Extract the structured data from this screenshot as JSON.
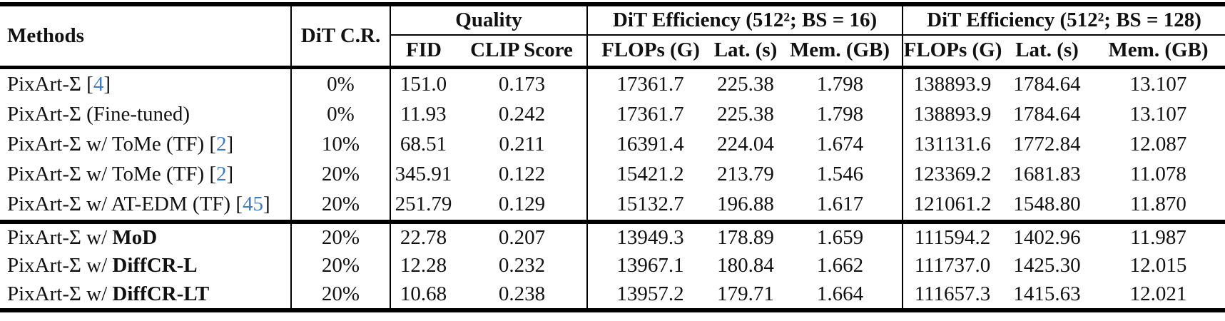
{
  "page": {
    "background": "#ffffff",
    "text_color": "#111111",
    "citation_color": "#3d7cc0"
  },
  "table": {
    "header": {
      "methods_label": "Methods",
      "dit_cr_label": "DiT C.R.",
      "quality_group_label": "Quality",
      "eff16_group_label": "DiT Efficiency (512²; BS = 16)",
      "eff128_group_label": "DiT Efficiency (512²; BS = 128)",
      "quality_cols": [
        "FID",
        "CLIP Score"
      ],
      "eff_cols": [
        "FLOPs (G)",
        "Lat. (s)",
        "Mem. (GB)"
      ]
    },
    "column_keys": [
      "dit-cr",
      "fid",
      "clip-score",
      "flops-bs16",
      "latency-bs16",
      "memory-bs16",
      "flops-bs128",
      "latency-bs128",
      "memory-bs128"
    ],
    "row_groups": [
      {
        "rows": [
          {
            "method": {
              "text": "PixArt-Σ",
              "bold": "",
              "cite": "4"
            },
            "values": [
              "0%",
              "151.0",
              "0.173",
              "17361.7",
              "225.38",
              "1.798",
              "138893.9",
              "1784.64",
              "13.107"
            ]
          },
          {
            "method": {
              "text": "PixArt-Σ (Fine-tuned)",
              "bold": "",
              "cite": ""
            },
            "values": [
              "0%",
              "11.93",
              "0.242",
              "17361.7",
              "225.38",
              "1.798",
              "138893.9",
              "1784.64",
              "13.107"
            ]
          },
          {
            "method": {
              "text": "PixArt-Σ w/ ToMe (TF)",
              "bold": "",
              "cite": "2"
            },
            "values": [
              "10%",
              "68.51",
              "0.211",
              "16391.4",
              "224.04",
              "1.674",
              "131131.6",
              "1772.84",
              "12.087"
            ]
          },
          {
            "method": {
              "text": "PixArt-Σ w/ ToMe (TF)",
              "bold": "",
              "cite": "2"
            },
            "values": [
              "20%",
              "345.91",
              "0.122",
              "15421.2",
              "213.79",
              "1.546",
              "123369.2",
              "1681.83",
              "11.078"
            ]
          },
          {
            "method": {
              "text": "PixArt-Σ w/ AT-EDM (TF)",
              "bold": "",
              "cite": "45"
            },
            "values": [
              "20%",
              "251.79",
              "0.129",
              "15132.7",
              "196.88",
              "1.617",
              "121061.2",
              "1548.80",
              "11.870"
            ]
          }
        ]
      },
      {
        "rows": [
          {
            "method": {
              "text": "PixArt-Σ w/",
              "bold": "MoD",
              "cite": ""
            },
            "values": [
              "20%",
              "22.78",
              "0.207",
              "13949.3",
              "178.89",
              "1.659",
              "111594.2",
              "1402.96",
              "11.987"
            ]
          },
          {
            "method": {
              "text": "PixArt-Σ w/",
              "bold": "DiffCR-L",
              "cite": ""
            },
            "values": [
              "20%",
              "12.28",
              "0.232",
              "13967.1",
              "180.84",
              "1.662",
              "111737.0",
              "1425.30",
              "12.015"
            ]
          },
          {
            "method": {
              "text": "PixArt-Σ w/",
              "bold": "DiffCR-LT",
              "cite": ""
            },
            "values": [
              "20%",
              "10.68",
              "0.238",
              "13957.2",
              "179.71",
              "1.664",
              "111657.3",
              "1415.63",
              "12.021"
            ]
          }
        ]
      }
    ]
  }
}
